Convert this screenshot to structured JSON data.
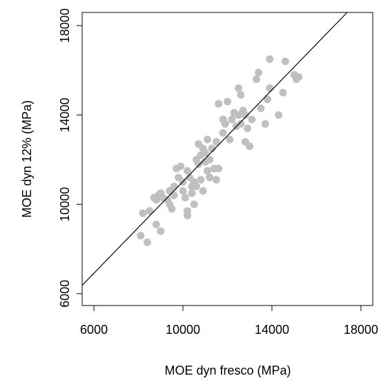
{
  "chart_data": {
    "type": "scatter",
    "x_label": "MOE dyn fresco (MPa)",
    "y_label": "MOE dyn 12% (MPa)",
    "xlim": [
      5470,
      18530
    ],
    "ylim": [
      5470,
      18590
    ],
    "xticks": [
      6000,
      10000,
      14000,
      18000
    ],
    "yticks": [
      6000,
      10000,
      14000,
      18000
    ],
    "series": [
      {
        "type": "scatter",
        "color": "#c0c0c0",
        "x": [
          8100,
          8400,
          8200,
          8500,
          8800,
          9000,
          8800,
          8700,
          9000,
          9100,
          9300,
          9400,
          9500,
          9600,
          9700,
          9900,
          9800,
          10000,
          10000,
          10100,
          10200,
          10300,
          10400,
          10500,
          10400,
          10200,
          10200,
          10500,
          10600,
          10700,
          10800,
          10700,
          10900,
          11000,
          11100,
          10800,
          10900,
          11100,
          11200,
          11400,
          11500,
          11600,
          11200,
          11300,
          11500,
          11600,
          11800,
          11900,
          12100,
          12200,
          12300,
          12400,
          12500,
          12600,
          12700,
          12600,
          12800,
          12900,
          12800,
          13000,
          13100,
          13300,
          13400,
          13500,
          13700,
          13800,
          13900,
          13900,
          14300,
          14500,
          14600,
          15000,
          15100,
          15200,
          12500,
          11800,
          10600,
          9600,
          9400,
          8900,
          11000,
          12000
        ],
        "y": [
          8600,
          8300,
          9600,
          9700,
          9100,
          8800,
          10200,
          10300,
          10500,
          10300,
          10200,
          10000,
          9800,
          10400,
          11600,
          11700,
          11200,
          11000,
          10600,
          10300,
          11500,
          11200,
          10800,
          11000,
          10500,
          9700,
          9500,
          10000,
          10800,
          11800,
          12200,
          12700,
          12500,
          12300,
          12900,
          11100,
          10600,
          11500,
          11200,
          11600,
          11100,
          11600,
          12000,
          12500,
          12800,
          14500,
          13200,
          13600,
          12900,
          13800,
          14100,
          13500,
          15200,
          14900,
          14200,
          13600,
          14000,
          13400,
          12800,
          12600,
          13800,
          15600,
          15900,
          14300,
          13600,
          14700,
          15200,
          16500,
          14000,
          15000,
          16400,
          15800,
          15600,
          15700,
          14000,
          13800,
          12000,
          10800,
          10600,
          10400,
          11900,
          14600
        ]
      },
      {
        "type": "line",
        "color": "#000000",
        "x": [
          5470,
          17380
        ],
        "y": [
          6372,
          18590
        ]
      }
    ]
  }
}
